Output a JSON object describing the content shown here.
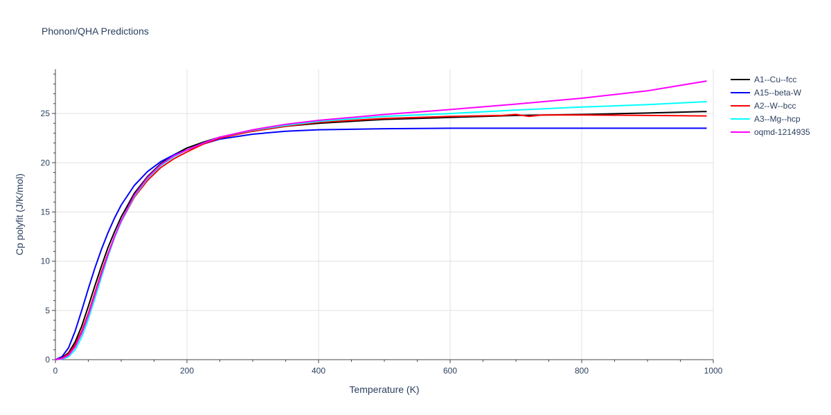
{
  "chart_data": {
    "type": "line",
    "title": "Phonon/QHA Predictions",
    "xlabel": "Temperature (K)",
    "ylabel": "Cp polyfit (J/K/mol)",
    "xlim": [
      0,
      1000
    ],
    "ylim": [
      0,
      29.5
    ],
    "x_ticks": [
      0,
      200,
      400,
      600,
      800,
      1000
    ],
    "y_ticks": [
      0,
      5,
      10,
      15,
      20,
      25
    ],
    "grid": true,
    "legend_position": "top-right",
    "series": [
      {
        "name": "A1--Cu--fcc",
        "color": "#000000",
        "points": [
          [
            0,
            0
          ],
          [
            10,
            0.2
          ],
          [
            20,
            0.7
          ],
          [
            30,
            1.8
          ],
          [
            40,
            3.4
          ],
          [
            50,
            5.4
          ],
          [
            60,
            7.5
          ],
          [
            70,
            9.5
          ],
          [
            80,
            11.4
          ],
          [
            90,
            13.0
          ],
          [
            100,
            14.5
          ],
          [
            120,
            16.9
          ],
          [
            140,
            18.6
          ],
          [
            160,
            19.9
          ],
          [
            180,
            20.8
          ],
          [
            200,
            21.5
          ],
          [
            225,
            22.1
          ],
          [
            250,
            22.6
          ],
          [
            300,
            23.2
          ],
          [
            350,
            23.7
          ],
          [
            400,
            24.0
          ],
          [
            500,
            24.4
          ],
          [
            600,
            24.6
          ],
          [
            700,
            24.8
          ],
          [
            800,
            24.9
          ],
          [
            900,
            25.05
          ],
          [
            990,
            25.2
          ]
        ]
      },
      {
        "name": "A15--beta-W",
        "color": "#0000ff",
        "points": [
          [
            0,
            0
          ],
          [
            10,
            0.3
          ],
          [
            20,
            1.2
          ],
          [
            30,
            2.9
          ],
          [
            40,
            5.0
          ],
          [
            50,
            7.2
          ],
          [
            60,
            9.3
          ],
          [
            70,
            11.2
          ],
          [
            80,
            12.9
          ],
          [
            90,
            14.4
          ],
          [
            100,
            15.7
          ],
          [
            120,
            17.7
          ],
          [
            140,
            19.1
          ],
          [
            160,
            20.1
          ],
          [
            180,
            20.8
          ],
          [
            200,
            21.3
          ],
          [
            225,
            21.9
          ],
          [
            250,
            22.4
          ],
          [
            300,
            22.9
          ],
          [
            350,
            23.2
          ],
          [
            400,
            23.35
          ],
          [
            500,
            23.45
          ],
          [
            600,
            23.5
          ],
          [
            700,
            23.5
          ],
          [
            800,
            23.5
          ],
          [
            900,
            23.5
          ],
          [
            990,
            23.5
          ]
        ]
      },
      {
        "name": "A2--W--bcc",
        "color": "#ff0000",
        "points": [
          [
            0,
            0
          ],
          [
            10,
            0.15
          ],
          [
            20,
            0.6
          ],
          [
            30,
            1.5
          ],
          [
            40,
            2.9
          ],
          [
            50,
            4.7
          ],
          [
            60,
            6.8
          ],
          [
            70,
            8.9
          ],
          [
            80,
            10.8
          ],
          [
            90,
            12.5
          ],
          [
            100,
            14.0
          ],
          [
            120,
            16.5
          ],
          [
            140,
            18.2
          ],
          [
            160,
            19.5
          ],
          [
            180,
            20.4
          ],
          [
            200,
            21.1
          ],
          [
            225,
            21.9
          ],
          [
            250,
            22.5
          ],
          [
            300,
            23.2
          ],
          [
            350,
            23.7
          ],
          [
            400,
            24.1
          ],
          [
            500,
            24.5
          ],
          [
            600,
            24.7
          ],
          [
            680,
            24.8
          ],
          [
            700,
            24.9
          ],
          [
            720,
            24.7
          ],
          [
            740,
            24.85
          ],
          [
            800,
            24.85
          ],
          [
            900,
            24.8
          ],
          [
            990,
            24.75
          ]
        ]
      },
      {
        "name": "A3--Mg--hcp",
        "color": "#00ffff",
        "points": [
          [
            0,
            0
          ],
          [
            10,
            0.05
          ],
          [
            20,
            0.3
          ],
          [
            30,
            1.0
          ],
          [
            40,
            2.3
          ],
          [
            50,
            4.1
          ],
          [
            60,
            6.2
          ],
          [
            70,
            8.4
          ],
          [
            80,
            10.5
          ],
          [
            90,
            12.4
          ],
          [
            100,
            14.0
          ],
          [
            120,
            16.6
          ],
          [
            140,
            18.4
          ],
          [
            160,
            19.7
          ],
          [
            180,
            20.6
          ],
          [
            200,
            21.3
          ],
          [
            225,
            22.0
          ],
          [
            250,
            22.6
          ],
          [
            300,
            23.3
          ],
          [
            350,
            23.8
          ],
          [
            400,
            24.2
          ],
          [
            500,
            24.7
          ],
          [
            600,
            25.0
          ],
          [
            700,
            25.35
          ],
          [
            800,
            25.65
          ],
          [
            900,
            25.9
          ],
          [
            990,
            26.2
          ]
        ]
      },
      {
        "name": "oqmd-1214935",
        "color": "#ff00ff",
        "points": [
          [
            0,
            0
          ],
          [
            10,
            0.1
          ],
          [
            20,
            0.45
          ],
          [
            30,
            1.3
          ],
          [
            40,
            2.7
          ],
          [
            50,
            4.5
          ],
          [
            60,
            6.6
          ],
          [
            70,
            8.7
          ],
          [
            80,
            10.7
          ],
          [
            90,
            12.5
          ],
          [
            100,
            14.1
          ],
          [
            120,
            16.7
          ],
          [
            140,
            18.5
          ],
          [
            160,
            19.8
          ],
          [
            180,
            20.7
          ],
          [
            200,
            21.3
          ],
          [
            225,
            22.0
          ],
          [
            250,
            22.6
          ],
          [
            300,
            23.35
          ],
          [
            350,
            23.9
          ],
          [
            400,
            24.3
          ],
          [
            500,
            24.9
          ],
          [
            600,
            25.4
          ],
          [
            700,
            25.95
          ],
          [
            800,
            26.55
          ],
          [
            900,
            27.3
          ],
          [
            990,
            28.3
          ]
        ]
      }
    ]
  }
}
